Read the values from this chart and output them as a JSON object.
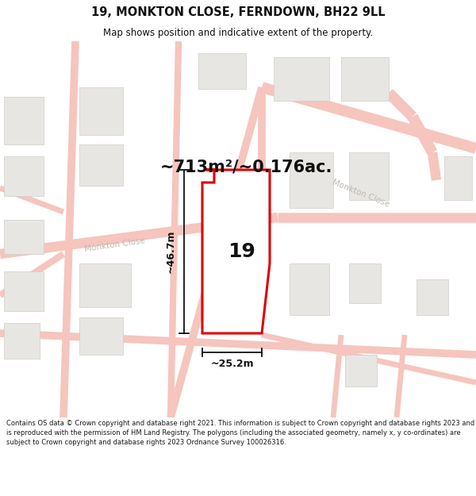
{
  "title": "19, MONKTON CLOSE, FERNDOWN, BH22 9LL",
  "subtitle": "Map shows position and indicative extent of the property.",
  "area_text": "~713m²/~0.176ac.",
  "number_label": "19",
  "dim_width": "~25.2m",
  "dim_height": "~46.7m",
  "street_label_1": "Monkton Close",
  "street_label_2": "Monkton Close",
  "footer_text": "Contains OS data © Crown copyright and database right 2021. This information is subject to Crown copyright and database rights 2023 and is reproduced with the permission of HM Land Registry. The polygons (including the associated geometry, namely x, y co-ordinates) are subject to Crown copyright and database rights 2023 Ordnance Survey 100026316.",
  "bg_color": "#ffffff",
  "map_bg": "#ffffff",
  "road_color": "#f5c5be",
  "building_color": "#e8e6e3",
  "building_edge_color": "#d0cdc9",
  "property_color": "#ffffff",
  "property_edge_color": "#dd0000",
  "dim_color": "#111111",
  "text_color": "#111111",
  "street_text_color": "#c0b8b4"
}
